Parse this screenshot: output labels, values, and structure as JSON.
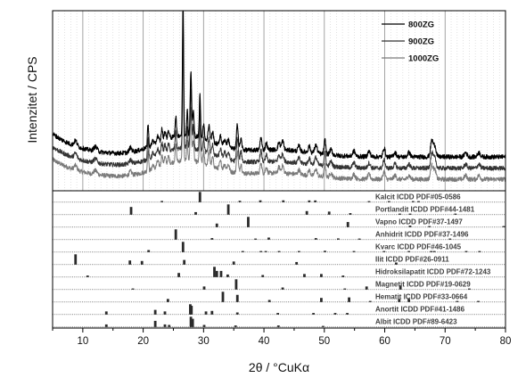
{
  "chart_data": {
    "type": "line",
    "ylabel": "Intenzitet / CPS",
    "xlabel": "2θ / °CuKα",
    "xlim": [
      5,
      80
    ],
    "xticks": [
      10,
      20,
      30,
      40,
      50,
      60,
      70,
      80
    ],
    "grid": true,
    "legend_position": "top-right",
    "series": [
      {
        "name": "800ZG",
        "color": "#000000"
      },
      {
        "name": "900ZG",
        "color": "#333333"
      },
      {
        "name": "1000ZG",
        "color": "#7a7a7a"
      }
    ],
    "reference_patterns": [
      {
        "label": "Kalcit ICDD PDF#05-0586",
        "peaks": [
          [
            23.1,
            0.12
          ],
          [
            29.4,
            1.0
          ],
          [
            36.0,
            0.14
          ],
          [
            39.4,
            0.18
          ],
          [
            43.2,
            0.18
          ],
          [
            47.5,
            0.17
          ],
          [
            48.5,
            0.17
          ],
          [
            57.4,
            0.08
          ],
          [
            60.7,
            0.05
          ],
          [
            64.7,
            0.05
          ],
          [
            65.6,
            0.03
          ]
        ]
      },
      {
        "label": "Portlandit ICDD PDF#44-1481",
        "peaks": [
          [
            18.0,
            0.75
          ],
          [
            28.7,
            0.25
          ],
          [
            34.1,
            1.0
          ],
          [
            47.1,
            0.35
          ],
          [
            50.8,
            0.3
          ],
          [
            54.3,
            0.15
          ],
          [
            62.5,
            0.1
          ],
          [
            64.2,
            0.1
          ],
          [
            71.7,
            0.05
          ]
        ]
      },
      {
        "label": "Vapno ICDD PDF#37-1497",
        "peaks": [
          [
            32.2,
            0.35
          ],
          [
            37.4,
            1.0
          ],
          [
            53.9,
            0.5
          ],
          [
            64.2,
            0.15
          ],
          [
            67.4,
            0.1
          ],
          [
            79.7,
            0.05
          ]
        ]
      },
      {
        "label": "Anhidrit ICDD PDF#37-1496",
        "peaks": [
          [
            25.4,
            1.0
          ],
          [
            31.4,
            0.15
          ],
          [
            38.6,
            0.1
          ],
          [
            40.8,
            0.2
          ],
          [
            48.6,
            0.15
          ],
          [
            52.3,
            0.12
          ],
          [
            55.8,
            0.1
          ],
          [
            70.8,
            0.05
          ]
        ]
      },
      {
        "label": "Kvarc ICDD PDF#46-1045",
        "peaks": [
          [
            20.9,
            0.2
          ],
          [
            26.6,
            1.0
          ],
          [
            36.5,
            0.08
          ],
          [
            39.5,
            0.08
          ],
          [
            40.3,
            0.05
          ],
          [
            42.5,
            0.06
          ],
          [
            45.8,
            0.05
          ],
          [
            50.1,
            0.13
          ],
          [
            54.9,
            0.04
          ],
          [
            59.9,
            0.09
          ],
          [
            64.0,
            0.03
          ],
          [
            67.7,
            0.05
          ],
          [
            68.2,
            0.07
          ],
          [
            73.5,
            0.03
          ],
          [
            75.7,
            0.03
          ]
        ]
      },
      {
        "label": "Ilit ICDD PDF#26-0911",
        "peaks": [
          [
            8.8,
            1.0
          ],
          [
            17.8,
            0.4
          ],
          [
            19.8,
            0.35
          ],
          [
            26.8,
            0.45
          ],
          [
            35.0,
            0.3
          ],
          [
            45.4,
            0.25
          ],
          [
            61.9,
            0.2
          ]
        ]
      },
      {
        "label": "Hidroksilapatit ICDD PDF#72-1243",
        "peaks": [
          [
            10.8,
            0.15
          ],
          [
            25.9,
            0.4
          ],
          [
            31.8,
            1.0
          ],
          [
            32.2,
            0.6
          ],
          [
            32.9,
            0.6
          ],
          [
            34.0,
            0.25
          ],
          [
            39.8,
            0.2
          ],
          [
            46.7,
            0.3
          ],
          [
            49.5,
            0.3
          ],
          [
            53.1,
            0.15
          ]
        ]
      },
      {
        "label": "Magnetit ICDD PDF#19-0629",
        "peaks": [
          [
            18.3,
            0.08
          ],
          [
            30.1,
            0.3
          ],
          [
            35.4,
            1.0
          ],
          [
            43.1,
            0.2
          ],
          [
            53.4,
            0.1
          ],
          [
            57.0,
            0.3
          ],
          [
            62.6,
            0.4
          ],
          [
            74.0,
            0.08
          ]
        ]
      },
      {
        "label": "Hematit ICDD PDF#33-0664",
        "peaks": [
          [
            24.1,
            0.3
          ],
          [
            33.2,
            1.0
          ],
          [
            35.6,
            0.7
          ],
          [
            40.9,
            0.2
          ],
          [
            49.5,
            0.4
          ],
          [
            54.1,
            0.45
          ],
          [
            57.6,
            0.1
          ],
          [
            62.4,
            0.3
          ],
          [
            64.0,
            0.3
          ],
          [
            72.0,
            0.1
          ],
          [
            75.5,
            0.08
          ]
        ]
      },
      {
        "label": "Anortit ICDD PDF#41-1486",
        "peaks": [
          [
            13.9,
            0.3
          ],
          [
            22.0,
            0.45
          ],
          [
            23.6,
            0.3
          ],
          [
            27.8,
            1.0
          ],
          [
            28.0,
            0.85
          ],
          [
            30.4,
            0.3
          ],
          [
            31.4,
            0.35
          ],
          [
            35.6,
            0.2
          ],
          [
            42.3,
            0.15
          ],
          [
            48.2,
            0.15
          ],
          [
            51.8,
            0.15
          ],
          [
            53.8,
            0.15
          ]
        ]
      },
      {
        "label": "Albit ICDD PDF#89-6423",
        "peaks": [
          [
            13.9,
            0.25
          ],
          [
            22.0,
            0.6
          ],
          [
            23.6,
            0.25
          ],
          [
            24.3,
            0.2
          ],
          [
            27.9,
            1.0
          ],
          [
            28.2,
            0.8
          ],
          [
            30.1,
            0.2
          ],
          [
            35.3,
            0.15
          ],
          [
            42.4,
            0.15
          ],
          [
            49.8,
            0.1
          ]
        ]
      }
    ]
  }
}
